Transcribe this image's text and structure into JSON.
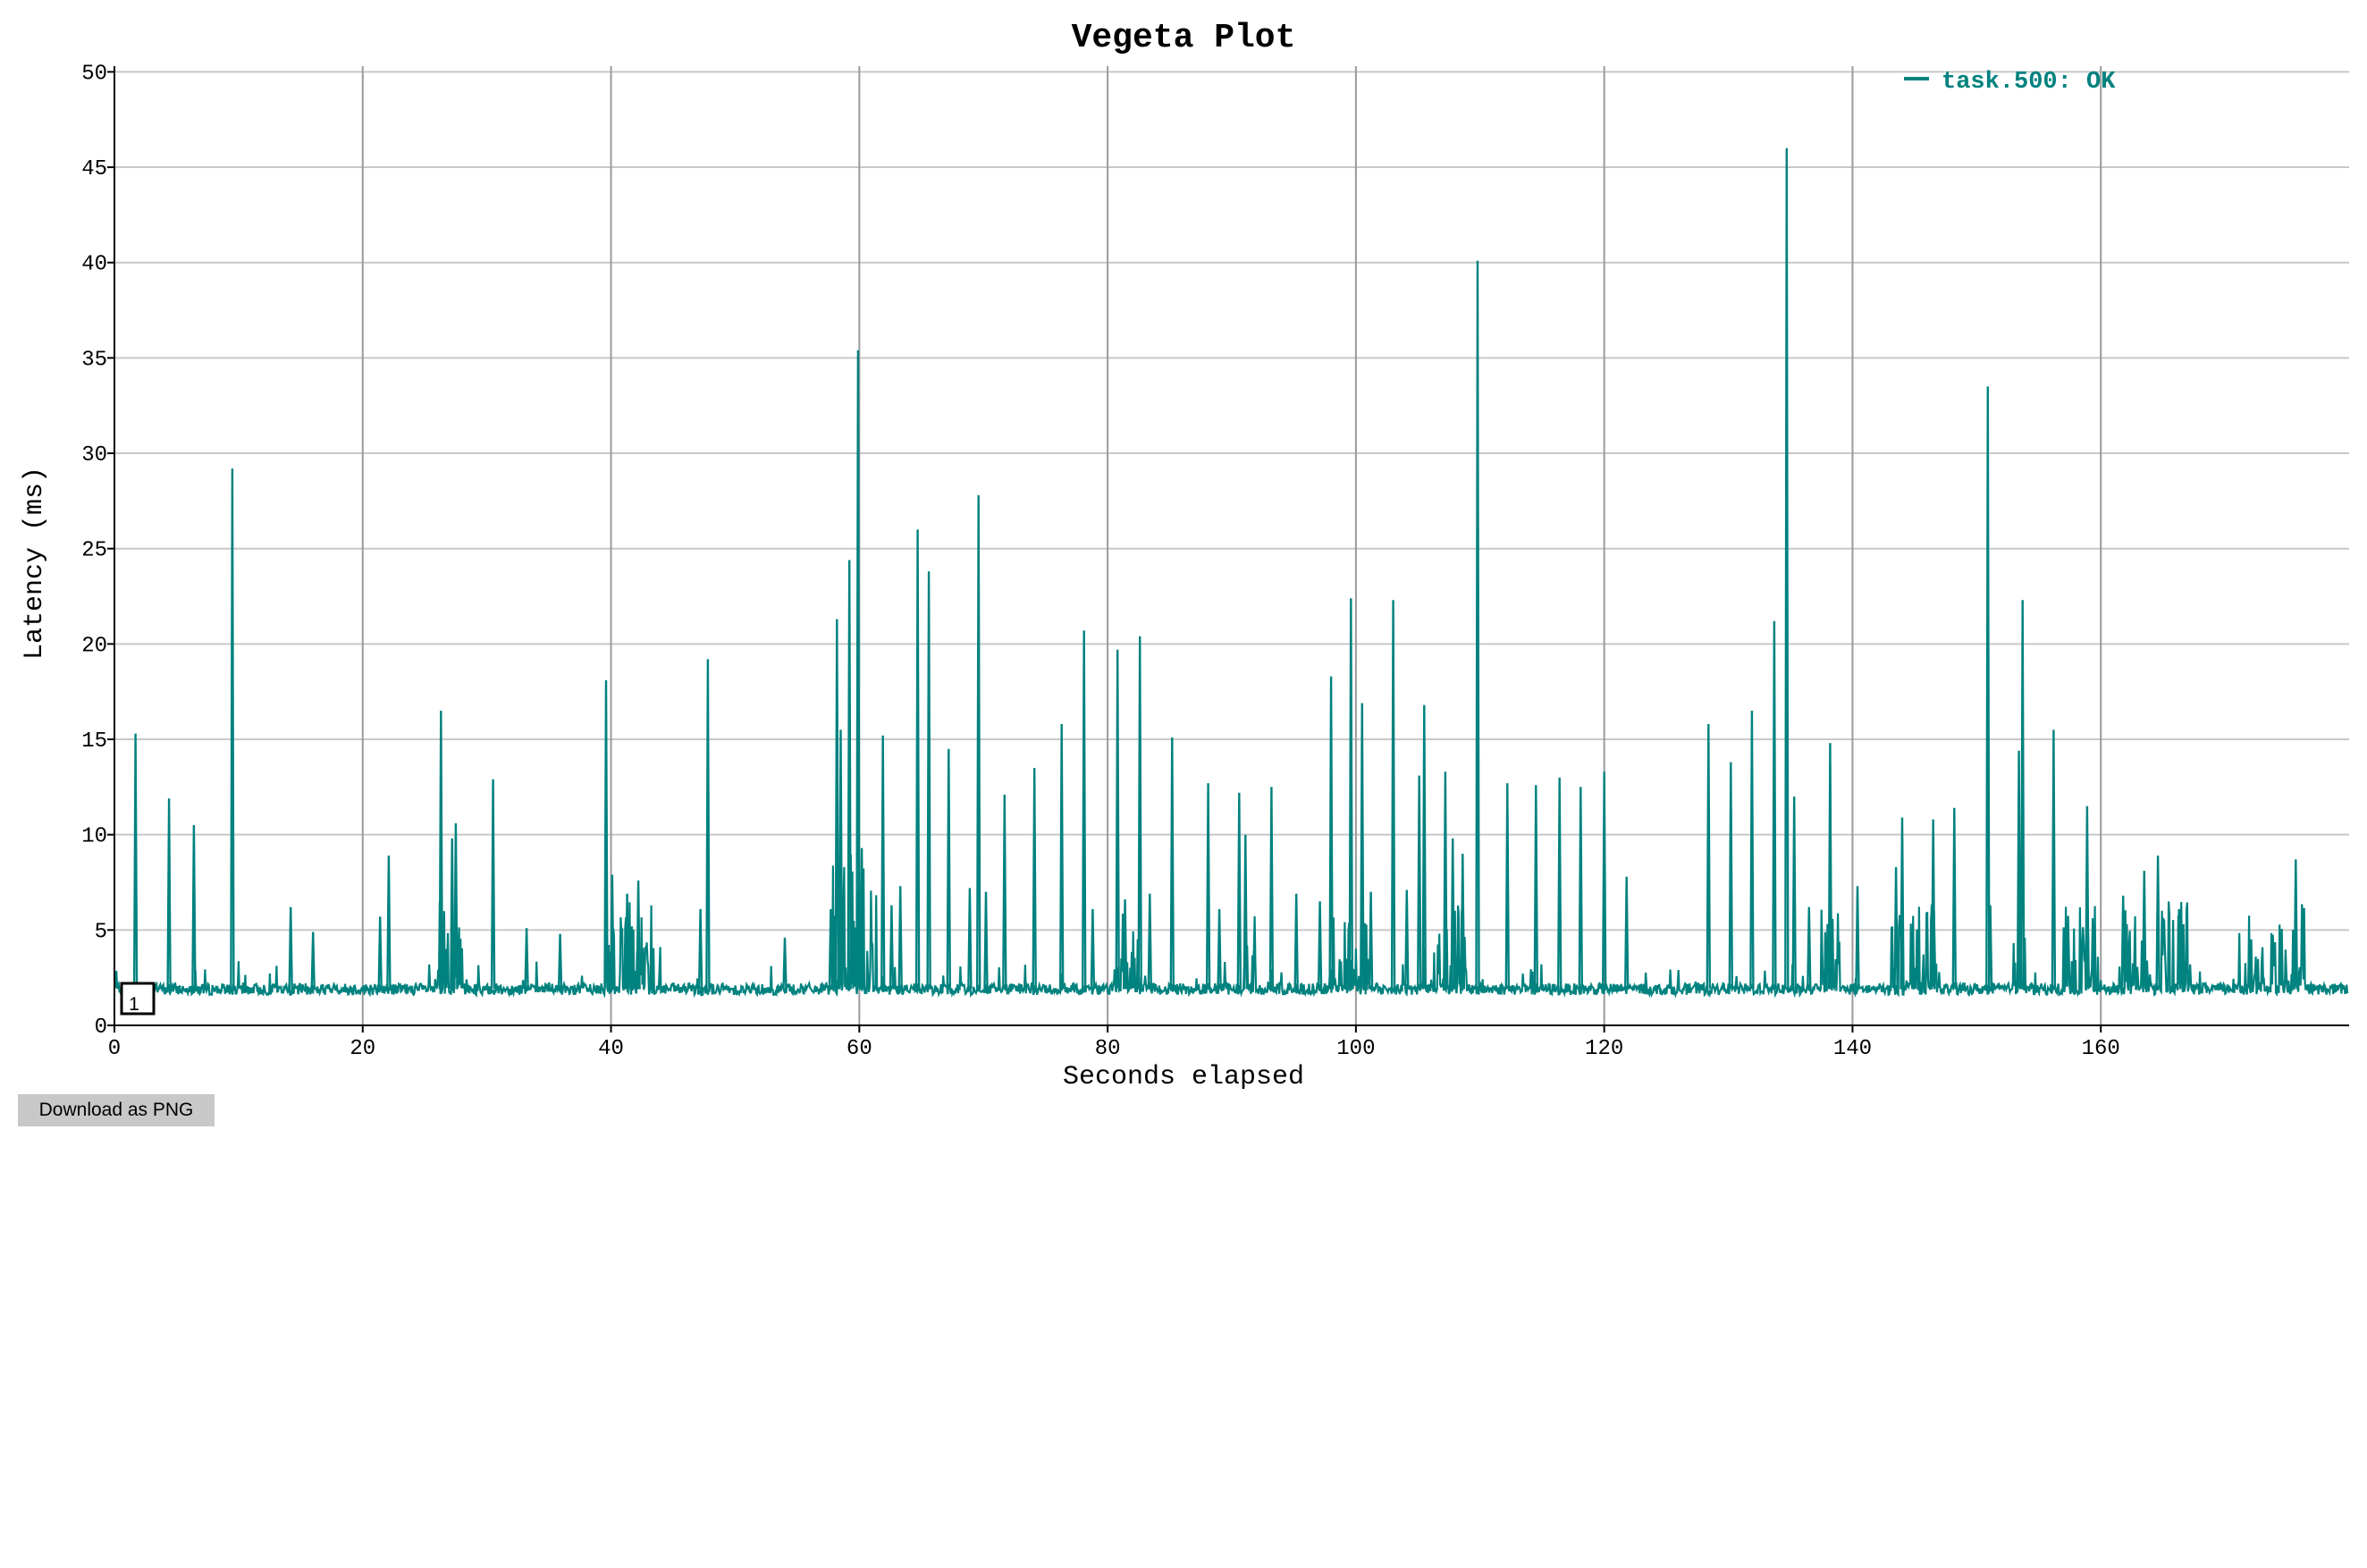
{
  "page": {
    "download_button_label": "Download as PNG"
  },
  "colors": {
    "series": "#00827f",
    "grid": "#c8c8c8",
    "axis": "#000000"
  },
  "chart_data": {
    "type": "line",
    "title": "Vegeta Plot",
    "xlabel": "Seconds elapsed",
    "ylabel": "Latency (ms)",
    "xlim": [
      0,
      180
    ],
    "ylim": [
      0,
      50.3
    ],
    "xticks": [
      0,
      20,
      40,
      60,
      80,
      100,
      120,
      140,
      160
    ],
    "yticks": [
      0,
      5,
      10,
      15,
      20,
      25,
      30,
      35,
      40,
      45,
      50
    ],
    "grid": true,
    "legend_position": "top-right",
    "annotation": "1",
    "series": [
      {
        "name": "task.500: OK",
        "baseline_ms": 1.9,
        "spikes": [
          [
            1.7,
            15.3
          ],
          [
            4.4,
            11.9
          ],
          [
            6.4,
            10.5
          ],
          [
            9.5,
            29.2
          ],
          [
            14.2,
            6.2
          ],
          [
            16.0,
            4.9
          ],
          [
            21.4,
            5.7
          ],
          [
            22.1,
            8.9
          ],
          [
            26.3,
            16.5
          ],
          [
            27.2,
            9.8
          ],
          [
            27.5,
            10.6
          ],
          [
            30.5,
            12.9
          ],
          [
            33.2,
            5.1
          ],
          [
            35.9,
            4.8
          ],
          [
            39.6,
            18.1
          ],
          [
            40.1,
            7.9
          ],
          [
            41.3,
            6.9
          ],
          [
            42.2,
            7.6
          ],
          [
            47.2,
            6.1
          ],
          [
            47.8,
            19.2
          ],
          [
            54.0,
            4.6
          ],
          [
            57.7,
            6.1
          ],
          [
            58.2,
            21.3
          ],
          [
            58.5,
            15.5
          ],
          [
            59.2,
            24.4
          ],
          [
            59.9,
            35.4
          ],
          [
            60.2,
            9.3
          ],
          [
            61.9,
            15.2
          ],
          [
            62.6,
            6.3
          ],
          [
            63.3,
            7.3
          ],
          [
            64.7,
            26.0
          ],
          [
            65.6,
            23.8
          ],
          [
            67.2,
            14.5
          ],
          [
            68.9,
            7.2
          ],
          [
            69.6,
            27.8
          ],
          [
            70.2,
            7.0
          ],
          [
            71.7,
            12.1
          ],
          [
            74.1,
            13.5
          ],
          [
            76.3,
            15.8
          ],
          [
            78.1,
            20.7
          ],
          [
            78.8,
            6.1
          ],
          [
            80.8,
            19.7
          ],
          [
            81.4,
            6.6
          ],
          [
            82.6,
            20.4
          ],
          [
            83.4,
            6.9
          ],
          [
            85.2,
            15.1
          ],
          [
            88.1,
            12.7
          ],
          [
            89.0,
            6.1
          ],
          [
            90.6,
            12.2
          ],
          [
            91.1,
            10.0
          ],
          [
            93.2,
            12.5
          ],
          [
            95.2,
            6.9
          ],
          [
            97.1,
            6.5
          ],
          [
            98.0,
            18.3
          ],
          [
            99.6,
            22.4
          ],
          [
            100.5,
            16.9
          ],
          [
            101.2,
            7.0
          ],
          [
            103.0,
            22.3
          ],
          [
            104.1,
            7.1
          ],
          [
            105.1,
            13.1
          ],
          [
            105.5,
            16.8
          ],
          [
            107.2,
            13.3
          ],
          [
            107.8,
            9.8
          ],
          [
            108.6,
            9.0
          ],
          [
            109.8,
            40.1
          ],
          [
            112.2,
            12.7
          ],
          [
            114.5,
            12.6
          ],
          [
            116.4,
            13.0
          ],
          [
            118.1,
            12.5
          ],
          [
            120.0,
            13.3
          ],
          [
            121.8,
            7.8
          ],
          [
            128.4,
            15.8
          ],
          [
            130.2,
            13.8
          ],
          [
            131.9,
            16.5
          ],
          [
            133.7,
            21.2
          ],
          [
            134.7,
            46.0
          ],
          [
            135.3,
            12.0
          ],
          [
            136.5,
            6.2
          ],
          [
            138.2,
            14.8
          ],
          [
            140.4,
            7.3
          ],
          [
            143.5,
            8.3
          ],
          [
            144.0,
            10.9
          ],
          [
            146.5,
            10.8
          ],
          [
            148.2,
            11.4
          ],
          [
            150.9,
            33.5
          ],
          [
            151.1,
            6.3
          ],
          [
            153.4,
            14.4
          ],
          [
            153.7,
            22.3
          ],
          [
            156.2,
            15.5
          ],
          [
            158.9,
            11.5
          ],
          [
            161.8,
            6.8
          ],
          [
            163.5,
            8.1
          ],
          [
            164.6,
            8.9
          ],
          [
            166.3,
            6.1
          ],
          [
            175.7,
            8.7
          ]
        ],
        "dense_regions": [
          [
            26.0,
            28.0,
            6.5
          ],
          [
            39.5,
            44.0,
            6.5
          ],
          [
            57.5,
            61.5,
            9.0
          ],
          [
            80.8,
            82.5,
            6.5
          ],
          [
            91.0,
            92.0,
            6.0
          ],
          [
            97.8,
            101.0,
            6.0
          ],
          [
            105.0,
            108.8,
            6.5
          ],
          [
            137.5,
            139.0,
            6.5
          ],
          [
            143.0,
            147.0,
            6.5
          ],
          [
            152.8,
            154.0,
            7.0
          ],
          [
            157.0,
            160.0,
            6.5
          ],
          [
            161.5,
            167.0,
            6.5
          ],
          [
            171.0,
            176.5,
            6.5
          ]
        ]
      }
    ]
  }
}
